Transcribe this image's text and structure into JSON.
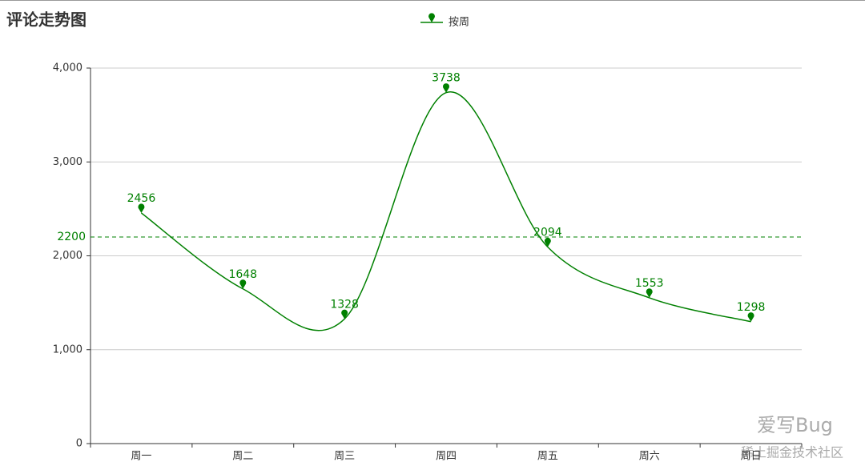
{
  "chart_data": {
    "type": "line",
    "title": "评论走势图",
    "categories": [
      "周一",
      "周二",
      "周三",
      "周四",
      "周五",
      "周六",
      "周日"
    ],
    "series": [
      {
        "name": "按周",
        "color": "#008000",
        "values": [
          2456,
          1648,
          1328,
          3738,
          2094,
          1553,
          1298
        ]
      }
    ],
    "smooth": true,
    "mark_line": {
      "value": 2200
    },
    "ylim": [
      0,
      4000
    ],
    "yticks": [
      0,
      {
        "value": 1000,
        "label": "1,000"
      },
      {
        "value": 2000,
        "label": "2,000"
      },
      {
        "value": 3000,
        "label": "3,000"
      },
      {
        "value": 4000,
        "label": "4,000"
      }
    ],
    "grid": true
  },
  "watermark": {
    "text": "爱写Bug",
    "source": "稀土掘金技术社区"
  }
}
